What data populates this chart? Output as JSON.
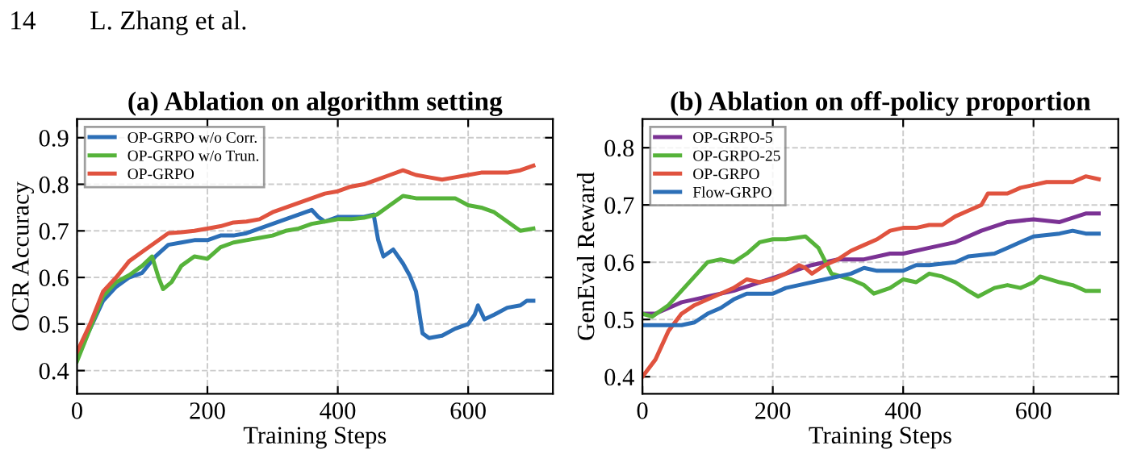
{
  "chart_data": [
    {
      "type": "line",
      "title": "(a) Ablation on algorithm setting",
      "xlabel": "Training Steps",
      "ylabel": "OCR Accuracy",
      "xlim": [
        0,
        730
      ],
      "ylim": [
        0.35,
        0.94
      ],
      "xticks": [
        0,
        200,
        400,
        600
      ],
      "yticks": [
        0.4,
        0.5,
        0.6,
        0.7,
        0.8,
        0.9
      ],
      "grid": true,
      "legend": "top left",
      "line_style": "solid",
      "marker": "none",
      "annotations": [
        "14        L. Zhang et al."
      ],
      "series": [
        {
          "name": "OP-GRPO w/o Corr.",
          "color": "#2c6fb7",
          "x": [
            0,
            20,
            40,
            60,
            80,
            100,
            120,
            140,
            160,
            180,
            200,
            220,
            240,
            260,
            280,
            300,
            320,
            340,
            360,
            370,
            380,
            400,
            420,
            440,
            455,
            462,
            470,
            485,
            500,
            510,
            520,
            530,
            540,
            560,
            580,
            600,
            610,
            615,
            625,
            640,
            660,
            680,
            690,
            700
          ],
          "values": [
            0.43,
            0.49,
            0.55,
            0.58,
            0.6,
            0.61,
            0.645,
            0.67,
            0.675,
            0.68,
            0.68,
            0.69,
            0.69,
            0.695,
            0.705,
            0.715,
            0.725,
            0.735,
            0.745,
            0.73,
            0.72,
            0.73,
            0.73,
            0.73,
            0.735,
            0.68,
            0.645,
            0.66,
            0.63,
            0.605,
            0.57,
            0.48,
            0.47,
            0.475,
            0.49,
            0.5,
            0.52,
            0.54,
            0.51,
            0.52,
            0.535,
            0.54,
            0.55,
            0.55
          ]
        },
        {
          "name": "OP-GRPO w/o Trun.",
          "color": "#56b33a",
          "x": [
            0,
            20,
            40,
            60,
            80,
            100,
            115,
            125,
            132,
            145,
            160,
            180,
            200,
            220,
            240,
            260,
            280,
            300,
            320,
            340,
            360,
            380,
            400,
            420,
            440,
            460,
            480,
            500,
            520,
            540,
            560,
            580,
            600,
            620,
            640,
            660,
            680,
            700
          ],
          "values": [
            0.42,
            0.49,
            0.56,
            0.59,
            0.605,
            0.625,
            0.645,
            0.6,
            0.575,
            0.59,
            0.625,
            0.645,
            0.64,
            0.665,
            0.675,
            0.68,
            0.685,
            0.69,
            0.7,
            0.705,
            0.715,
            0.72,
            0.725,
            0.725,
            0.728,
            0.735,
            0.755,
            0.775,
            0.77,
            0.77,
            0.77,
            0.77,
            0.755,
            0.75,
            0.74,
            0.72,
            0.7,
            0.705
          ]
        },
        {
          "name": "OP-GRPO",
          "color": "#e0533f",
          "x": [
            0,
            20,
            40,
            60,
            80,
            100,
            120,
            140,
            160,
            180,
            200,
            220,
            240,
            260,
            280,
            300,
            320,
            340,
            360,
            380,
            400,
            420,
            440,
            460,
            480,
            500,
            520,
            540,
            560,
            580,
            600,
            620,
            640,
            660,
            680,
            700
          ],
          "values": [
            0.44,
            0.5,
            0.57,
            0.6,
            0.635,
            0.655,
            0.675,
            0.695,
            0.697,
            0.7,
            0.705,
            0.71,
            0.718,
            0.72,
            0.725,
            0.74,
            0.75,
            0.76,
            0.77,
            0.78,
            0.785,
            0.795,
            0.8,
            0.81,
            0.82,
            0.83,
            0.82,
            0.815,
            0.81,
            0.815,
            0.82,
            0.825,
            0.825,
            0.825,
            0.83,
            0.84
          ]
        }
      ]
    },
    {
      "type": "line",
      "title": "(b) Ablation on off-policy proportion",
      "xlabel": "Training Steps",
      "ylabel": "GenEval Reward",
      "xlim": [
        0,
        730
      ],
      "ylim": [
        0.37,
        0.85
      ],
      "xticks": [
        0,
        200,
        400,
        600
      ],
      "yticks": [
        0.4,
        0.5,
        0.6,
        0.7,
        0.8
      ],
      "grid": true,
      "legend": "top left",
      "line_style": "solid",
      "marker": "none",
      "series": [
        {
          "name": "OP-GRPO-5",
          "color": "#7b3294",
          "x": [
            0,
            20,
            40,
            60,
            80,
            100,
            140,
            180,
            220,
            260,
            280,
            300,
            340,
            380,
            400,
            440,
            480,
            520,
            560,
            600,
            640,
            680,
            700
          ],
          "values": [
            0.51,
            0.51,
            0.52,
            0.53,
            0.535,
            0.54,
            0.55,
            0.565,
            0.58,
            0.595,
            0.6,
            0.605,
            0.605,
            0.615,
            0.615,
            0.625,
            0.635,
            0.655,
            0.67,
            0.675,
            0.67,
            0.685,
            0.685
          ]
        },
        {
          "name": "OP-GRPO-25",
          "color": "#56b33a",
          "x": [
            0,
            15,
            40,
            60,
            80,
            100,
            120,
            140,
            160,
            180,
            200,
            220,
            250,
            270,
            290,
            320,
            340,
            355,
            380,
            400,
            420,
            440,
            460,
            480,
            500,
            515,
            540,
            560,
            580,
            600,
            610,
            640,
            660,
            680,
            700
          ],
          "values": [
            0.51,
            0.505,
            0.525,
            0.55,
            0.575,
            0.6,
            0.605,
            0.6,
            0.615,
            0.635,
            0.64,
            0.64,
            0.645,
            0.625,
            0.58,
            0.57,
            0.56,
            0.545,
            0.555,
            0.57,
            0.565,
            0.58,
            0.575,
            0.565,
            0.55,
            0.54,
            0.555,
            0.56,
            0.555,
            0.565,
            0.575,
            0.565,
            0.56,
            0.55,
            0.55
          ]
        },
        {
          "name": "OP-GRPO",
          "color": "#e0533f",
          "x": [
            0,
            20,
            40,
            60,
            80,
            100,
            120,
            140,
            160,
            180,
            200,
            220,
            240,
            250,
            260,
            280,
            300,
            320,
            340,
            360,
            380,
            400,
            420,
            440,
            460,
            480,
            500,
            520,
            530,
            560,
            580,
            600,
            620,
            640,
            660,
            680,
            700
          ],
          "values": [
            0.4,
            0.43,
            0.48,
            0.51,
            0.525,
            0.535,
            0.545,
            0.555,
            0.57,
            0.565,
            0.57,
            0.58,
            0.595,
            0.59,
            0.58,
            0.595,
            0.605,
            0.62,
            0.63,
            0.64,
            0.655,
            0.66,
            0.66,
            0.665,
            0.665,
            0.68,
            0.69,
            0.7,
            0.72,
            0.72,
            0.73,
            0.735,
            0.74,
            0.74,
            0.74,
            0.75,
            0.745
          ]
        },
        {
          "name": "Flow-GRPO",
          "color": "#2c6fb7",
          "x": [
            0,
            20,
            40,
            60,
            80,
            100,
            120,
            140,
            160,
            200,
            220,
            240,
            280,
            320,
            340,
            360,
            400,
            420,
            440,
            480,
            500,
            540,
            560,
            580,
            600,
            640,
            660,
            680,
            700
          ],
          "values": [
            0.49,
            0.49,
            0.49,
            0.49,
            0.495,
            0.51,
            0.52,
            0.535,
            0.545,
            0.545,
            0.555,
            0.56,
            0.57,
            0.58,
            0.59,
            0.585,
            0.585,
            0.595,
            0.595,
            0.6,
            0.61,
            0.615,
            0.625,
            0.635,
            0.645,
            0.65,
            0.655,
            0.65,
            0.65
          ]
        }
      ]
    }
  ]
}
